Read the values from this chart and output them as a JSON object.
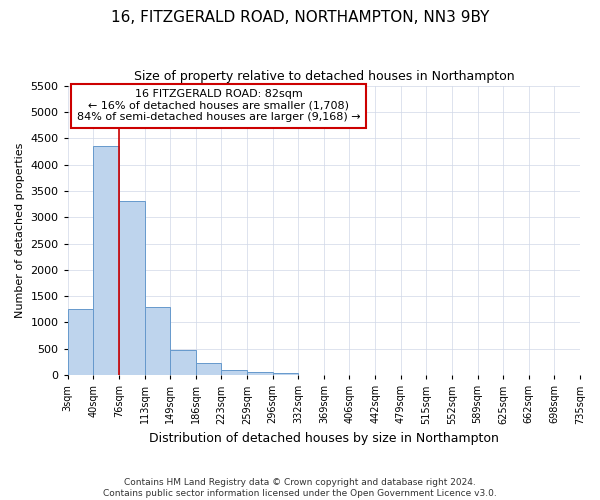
{
  "title1": "16, FITZGERALD ROAD, NORTHAMPTON, NN3 9BY",
  "title2": "Size of property relative to detached houses in Northampton",
  "xlabel": "Distribution of detached houses by size in Northampton",
  "ylabel": "Number of detached properties",
  "bin_labels": [
    "3sqm",
    "40sqm",
    "76sqm",
    "113sqm",
    "149sqm",
    "186sqm",
    "223sqm",
    "259sqm",
    "296sqm",
    "332sqm",
    "369sqm",
    "406sqm",
    "442sqm",
    "479sqm",
    "515sqm",
    "552sqm",
    "589sqm",
    "625sqm",
    "662sqm",
    "698sqm",
    "735sqm"
  ],
  "bar_values": [
    1260,
    4350,
    3300,
    1300,
    480,
    230,
    100,
    60,
    50,
    0,
    0,
    0,
    0,
    0,
    0,
    0,
    0,
    0,
    0,
    0
  ],
  "bar_color": "#bed4ed",
  "bar_edge_color": "#6699cc",
  "grid_color": "#d0d8e8",
  "vline_x_idx": 2,
  "vline_color": "#cc0000",
  "annotation_text": "16 FITZGERALD ROAD: 82sqm\n← 16% of detached houses are smaller (1,708)\n84% of semi-detached houses are larger (9,168) →",
  "annotation_box_color": "white",
  "annotation_box_edge": "#cc0000",
  "ylim": [
    0,
    5500
  ],
  "yticks": [
    0,
    500,
    1000,
    1500,
    2000,
    2500,
    3000,
    3500,
    4000,
    4500,
    5000,
    5500
  ],
  "footer": "Contains HM Land Registry data © Crown copyright and database right 2024.\nContains public sector information licensed under the Open Government Licence v3.0.",
  "bg_color": "#ffffff",
  "plot_bg_color": "#ffffff",
  "title1_fontsize": 11,
  "title2_fontsize": 9
}
